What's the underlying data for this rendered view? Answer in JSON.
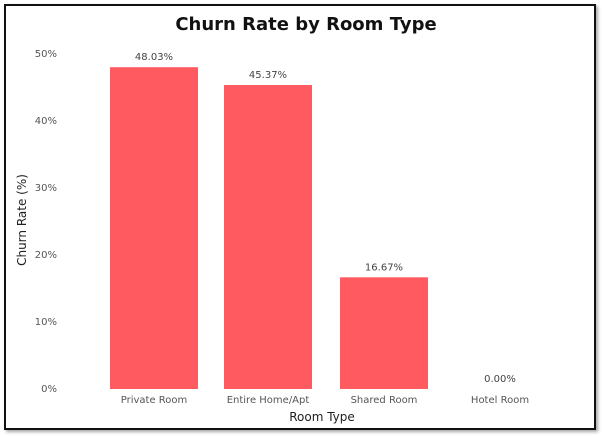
{
  "chart_data": {
    "type": "bar",
    "title": "Churn Rate by Room Type",
    "xlabel": "Room Type",
    "ylabel": "Churn Rate (%)",
    "categories": [
      "Private Room",
      "Entire Home/Apt",
      "Shared Room",
      "Hotel Room"
    ],
    "values": [
      48.03,
      45.37,
      16.67,
      0.0
    ],
    "data_labels": [
      "48.03%",
      "45.37%",
      "16.67%",
      "0.00%"
    ],
    "ylim": [
      0,
      50
    ],
    "yticks": [
      0,
      10,
      20,
      30,
      40,
      50
    ],
    "ytick_labels": [
      "0%",
      "10%",
      "20%",
      "30%",
      "40%",
      "50%"
    ],
    "bar_color": "#FF5A5F",
    "grid": false,
    "legend": "none"
  }
}
